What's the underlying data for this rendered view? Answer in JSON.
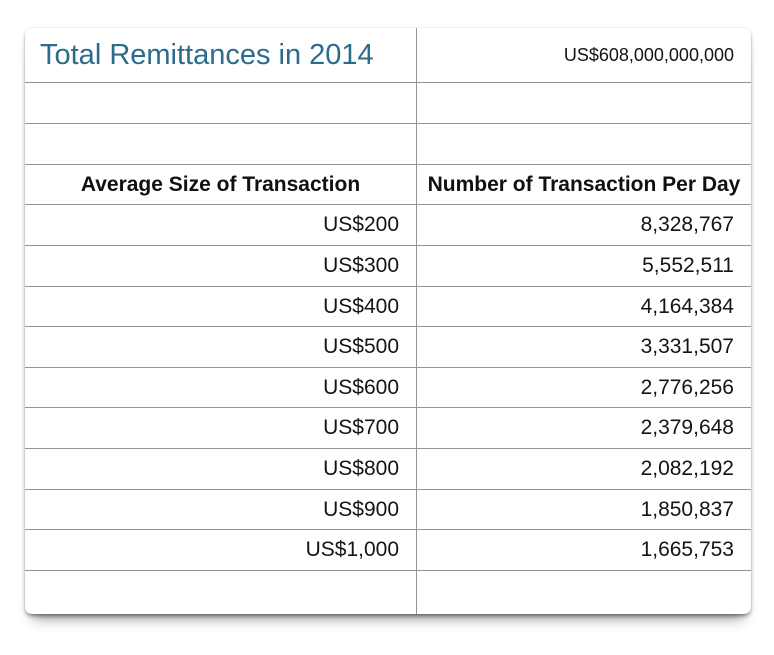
{
  "accent_color": "#2c6b8c",
  "grid_line_color": "#949494",
  "chart_data": {
    "type": "table",
    "title": "Total Remittances in 2014",
    "total_label": "US$608,000,000,000",
    "total_value_usd": 608000000000,
    "columns": [
      "Average Size of Transaction",
      "Number of Transaction Per Day"
    ],
    "rows": [
      [
        "US$200",
        "8,328,767"
      ],
      [
        "US$300",
        "5,552,511"
      ],
      [
        "US$400",
        "4,164,384"
      ],
      [
        "US$500",
        "3,331,507"
      ],
      [
        "US$600",
        "2,776,256"
      ],
      [
        "US$700",
        "2,379,648"
      ],
      [
        "US$800",
        "2,082,192"
      ],
      [
        "US$900",
        "1,850,837"
      ],
      [
        "US$1,000",
        "1,665,753"
      ]
    ],
    "rows_numeric": [
      [
        200,
        8328767
      ],
      [
        300,
        5552511
      ],
      [
        400,
        4164384
      ],
      [
        500,
        3331507
      ],
      [
        600,
        2776256
      ],
      [
        700,
        2379648
      ],
      [
        800,
        2082192
      ],
      [
        900,
        1850837
      ],
      [
        1000,
        1665753
      ]
    ]
  }
}
